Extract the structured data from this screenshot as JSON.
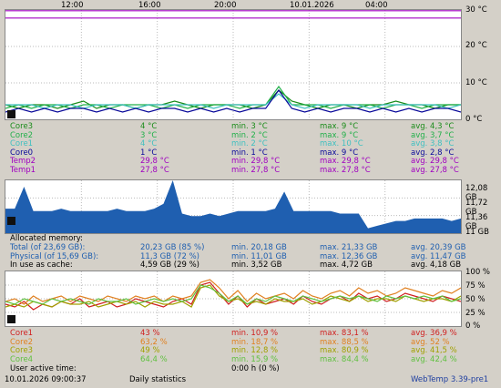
{
  "time_axis": [
    "12:00",
    "16:00",
    "20:00",
    "10.01.2026",
    "04:00"
  ],
  "temp_chart": {
    "y_labels": [
      "30 °C",
      "20 °C",
      "10 °C",
      "0 °C"
    ],
    "chart_data": {
      "type": "line",
      "ylim": [
        0,
        30
      ],
      "series": [
        {
          "name": "Core3",
          "color": "#1a8c1a",
          "values": [
            4,
            3,
            4,
            4,
            3,
            4,
            5,
            3,
            4,
            4,
            3,
            4,
            4,
            5,
            4,
            3,
            4,
            4,
            4,
            3,
            4,
            8,
            5,
            4,
            3,
            4,
            4,
            3,
            4,
            4,
            5,
            4,
            4,
            3,
            4,
            4
          ]
        },
        {
          "name": "Core2",
          "color": "#22b04a",
          "values": [
            3,
            4,
            3,
            4,
            4,
            3,
            4,
            4,
            3,
            4,
            4,
            4,
            3,
            4,
            3,
            4,
            4,
            4,
            3,
            4,
            4,
            9,
            4,
            4,
            4,
            3,
            4,
            4,
            4,
            3,
            4,
            4,
            3,
            4,
            4,
            4
          ]
        },
        {
          "name": "Core1",
          "color": "#40c0c0",
          "values": [
            4,
            4,
            4,
            3,
            4,
            4,
            3,
            4,
            4,
            4,
            3,
            4,
            4,
            4,
            4,
            4,
            3,
            4,
            4,
            4,
            4,
            7,
            4,
            3,
            4,
            4,
            4,
            4,
            3,
            4,
            4,
            4,
            4,
            4,
            3,
            4
          ]
        },
        {
          "name": "Core0",
          "color": "#0a0a9a",
          "values": [
            2,
            3,
            2,
            3,
            2,
            3,
            3,
            2,
            3,
            2,
            3,
            2,
            3,
            3,
            2,
            3,
            2,
            3,
            2,
            3,
            3,
            8,
            3,
            2,
            3,
            2,
            3,
            3,
            2,
            3,
            2,
            3,
            2,
            3,
            3,
            2
          ]
        },
        {
          "name": "Temp2",
          "color": "#a000c0",
          "values": [
            29.8,
            29.8,
            29.8,
            29.8,
            29.8,
            29.8,
            29.8,
            29.8,
            29.8,
            29.8,
            29.8,
            29.8,
            29.8,
            29.8,
            29.8,
            29.8,
            29.8,
            29.8,
            29.8,
            29.8,
            29.8,
            29.8,
            29.8,
            29.8,
            29.8,
            29.8,
            29.8,
            29.8,
            29.8,
            29.8,
            29.8,
            29.8,
            29.8,
            29.8,
            29.8,
            29.8
          ]
        },
        {
          "name": "Temp1",
          "color": "#a000c0",
          "values": [
            27.8,
            27.8,
            27.8,
            27.8,
            27.8,
            27.8,
            27.8,
            27.8,
            27.8,
            27.8,
            27.8,
            27.8,
            27.8,
            27.8,
            27.8,
            27.8,
            27.8,
            27.8,
            27.8,
            27.8,
            27.8,
            27.8,
            27.8,
            27.8,
            27.8,
            27.8,
            27.8,
            27.8,
            27.8,
            27.8,
            27.8,
            27.8,
            27.8,
            27.8,
            27.8,
            27.8
          ]
        }
      ]
    },
    "rows": [
      {
        "name": "Core3",
        "cur": "4 °C",
        "min": "min. 3 °C",
        "max": "max. 9 °C",
        "avg": "avg. 4,3 °C",
        "color": "#1a8c1a"
      },
      {
        "name": "Core2",
        "cur": "3 °C",
        "min": "min. 2 °C",
        "max": "max. 9 °C",
        "avg": "avg. 3,7 °C",
        "color": "#22b04a"
      },
      {
        "name": "Core1",
        "cur": "4 °C",
        "min": "min. 2 °C",
        "max": "max. 10 °C",
        "avg": "avg. 3,8 °C",
        "color": "#40c0c0"
      },
      {
        "name": "Core0",
        "cur": "1 °C",
        "min": "min. 1 °C",
        "max": "max. 9 °C",
        "avg": "avg. 2,8 °C",
        "color": "#0a0a9a"
      },
      {
        "name": "Temp2",
        "cur": "29,8 °C",
        "min": "min. 29,8 °C",
        "max": "max. 29,8 °C",
        "avg": "avg. 29,8 °C",
        "color": "#a000c0"
      },
      {
        "name": "Temp1",
        "cur": "27,8 °C",
        "min": "min. 27,8 °C",
        "max": "max. 27,8 °C",
        "avg": "avg. 27,8 °C",
        "color": "#a000c0"
      }
    ]
  },
  "mem_chart": {
    "y_labels": [
      "12,08 GB",
      "11,72 GB",
      "11,36 GB",
      "11 GB"
    ],
    "chart_data": {
      "type": "area",
      "ylim": [
        11,
        12.08
      ],
      "series": [
        {
          "name": "Physical",
          "color": "#1f5fb0",
          "values": [
            11.5,
            11.5,
            11.95,
            11.45,
            11.45,
            11.45,
            11.5,
            11.45,
            11.45,
            11.45,
            11.45,
            11.45,
            11.5,
            11.45,
            11.45,
            11.45,
            11.5,
            11.6,
            12.1,
            11.4,
            11.35,
            11.35,
            11.4,
            11.35,
            11.4,
            11.45,
            11.45,
            11.45,
            11.45,
            11.5,
            11.85,
            11.45,
            11.45,
            11.45,
            11.45,
            11.45,
            11.4,
            11.4,
            11.4,
            11.1,
            11.15,
            11.2,
            11.25,
            11.25,
            11.3,
            11.3,
            11.3,
            11.3,
            11.25,
            11.3
          ]
        }
      ]
    },
    "header": "Allocated memory:",
    "rows": [
      {
        "name": "Total (of 23,69 GB):",
        "cur": "20,23 GB (85 %)",
        "min": "min. 20,18 GB",
        "max": "max. 21,33 GB",
        "avg": "avg. 20,39 GB",
        "color": "#1f5fb0"
      },
      {
        "name": "Physical (of 15,69 GB):",
        "cur": "11,3 GB (72 %)",
        "min": "min. 11,01 GB",
        "max": "max. 12,36 GB",
        "avg": "avg. 11,47 GB",
        "color": "#1f5fb0"
      },
      {
        "name": "In use as cache:",
        "cur": "4,59 GB (29 %)",
        "min": "min. 3,52 GB",
        "max": "max. 4,72 GB",
        "avg": "avg. 4,18 GB",
        "color": "#000000"
      }
    ]
  },
  "cpu_chart": {
    "y_labels": [
      "100 %",
      "75 %",
      "50 %",
      "25 %",
      "0 %"
    ],
    "chart_data": {
      "type": "line",
      "ylim": [
        0,
        100
      ],
      "series": [
        {
          "name": "Core1",
          "color": "#d02020",
          "values": [
            40,
            35,
            45,
            30,
            40,
            35,
            45,
            40,
            50,
            35,
            40,
            45,
            35,
            40,
            50,
            45,
            40,
            35,
            45,
            50,
            40,
            75,
            80,
            60,
            40,
            55,
            35,
            50,
            40,
            45,
            50,
            40,
            55,
            45,
            40,
            50,
            55,
            45,
            60,
            50,
            55,
            45,
            50,
            60,
            55,
            50,
            45,
            55,
            50,
            45
          ]
        },
        {
          "name": "Core2",
          "color": "#e08020",
          "values": [
            45,
            50,
            40,
            55,
            45,
            50,
            55,
            45,
            55,
            50,
            45,
            55,
            50,
            45,
            55,
            50,
            55,
            45,
            55,
            50,
            55,
            80,
            85,
            70,
            50,
            65,
            45,
            60,
            50,
            55,
            60,
            50,
            65,
            55,
            50,
            60,
            65,
            55,
            70,
            60,
            65,
            55,
            60,
            70,
            65,
            60,
            55,
            65,
            60,
            70
          ]
        },
        {
          "name": "Core3",
          "color": "#a0a000",
          "values": [
            35,
            40,
            35,
            45,
            40,
            35,
            45,
            40,
            40,
            45,
            35,
            40,
            45,
            40,
            45,
            35,
            45,
            40,
            40,
            45,
            35,
            70,
            75,
            55,
            45,
            50,
            40,
            45,
            40,
            50,
            45,
            45,
            50,
            40,
            45,
            55,
            50,
            45,
            55,
            45,
            50,
            50,
            45,
            55,
            50,
            45,
            50,
            50,
            45,
            55
          ]
        },
        {
          "name": "Core4",
          "color": "#60c040",
          "values": [
            45,
            40,
            50,
            45,
            40,
            50,
            45,
            50,
            45,
            40,
            50,
            45,
            45,
            50,
            40,
            45,
            50,
            45,
            50,
            45,
            50,
            75,
            70,
            60,
            45,
            55,
            40,
            50,
            45,
            55,
            50,
            45,
            55,
            50,
            45,
            50,
            55,
            50,
            55,
            50,
            45,
            55,
            50,
            55,
            50,
            55,
            50,
            55,
            45,
            50
          ]
        }
      ]
    },
    "rows": [
      {
        "name": "Core1",
        "cur": "43 %",
        "min": "min. 10,9 %",
        "max": "max. 83,1 %",
        "avg": "avg. 36,9 %",
        "color": "#d02020"
      },
      {
        "name": "Core2",
        "cur": "63,2 %",
        "min": "min. 18,7 %",
        "max": "max. 88,5 %",
        "avg": "avg. 52 %",
        "color": "#e08020"
      },
      {
        "name": "Core3",
        "cur": "49 %",
        "min": "min. 12,8 %",
        "max": "max. 80,9 %",
        "avg": "avg. 41,5 %",
        "color": "#a0a000"
      },
      {
        "name": "Core4",
        "cur": "64,4 %",
        "min": "min. 15,9 %",
        "max": "max. 84,4 %",
        "avg": "avg. 42,4 %",
        "color": "#60c040"
      }
    ],
    "active_label": "User active time:",
    "active_value": "0:00 h (0 %)"
  },
  "footer": {
    "datetime": "10.01.2026 09:00:37",
    "stats_label": "Daily statistics",
    "app": "WebTemp 3.39-pre1"
  }
}
